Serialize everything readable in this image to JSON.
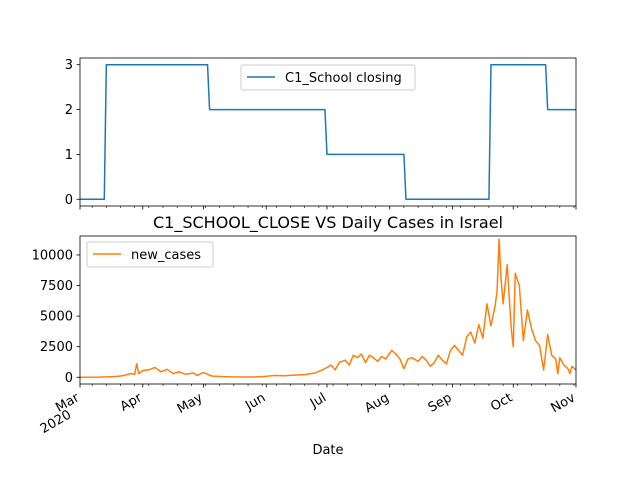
{
  "chart_data": [
    {
      "type": "line",
      "x_unit": "date",
      "xlim": [
        "2020-03-01",
        "2020-11-01"
      ],
      "ylim": [
        -0.15,
        3.15
      ],
      "yticks": [
        0,
        1,
        2,
        3
      ],
      "grid": false,
      "legend_position": "upper-center",
      "series": [
        {
          "name": "C1_School closing",
          "color": "#1f77b4",
          "points": [
            [
              "2020-03-01",
              0
            ],
            [
              "2020-03-13",
              0
            ],
            [
              "2020-03-14",
              3
            ],
            [
              "2020-05-03",
              3
            ],
            [
              "2020-05-04",
              2
            ],
            [
              "2020-06-30",
              2
            ],
            [
              "2020-07-01",
              1
            ],
            [
              "2020-08-08",
              1
            ],
            [
              "2020-08-09",
              0
            ],
            [
              "2020-09-19",
              0
            ],
            [
              "2020-09-20",
              3
            ],
            [
              "2020-10-17",
              3
            ],
            [
              "2020-10-18",
              2
            ],
            [
              "2020-11-01",
              2
            ]
          ]
        }
      ]
    },
    {
      "type": "line",
      "title": "C1_SCHOOL_CLOSE VS Daily Cases in Israel",
      "xlabel": "Date",
      "x_unit": "date",
      "xlim": [
        "2020-03-01",
        "2020-11-01"
      ],
      "ylim": [
        -550,
        11550
      ],
      "yticks": [
        0,
        2500,
        5000,
        7500,
        10000
      ],
      "grid": false,
      "legend_position": "upper-left",
      "x_tick_labels": [
        {
          "date": "2020-03-01",
          "label": "Mar",
          "sub": "2020"
        },
        {
          "date": "2020-04-01",
          "label": "Apr",
          "sub": ""
        },
        {
          "date": "2020-05-01",
          "label": "May",
          "sub": ""
        },
        {
          "date": "2020-06-01",
          "label": "Jun",
          "sub": ""
        },
        {
          "date": "2020-07-01",
          "label": "Jul",
          "sub": ""
        },
        {
          "date": "2020-08-01",
          "label": "Aug",
          "sub": ""
        },
        {
          "date": "2020-09-01",
          "label": "Sep",
          "sub": ""
        },
        {
          "date": "2020-10-01",
          "label": "Oct",
          "sub": ""
        },
        {
          "date": "2020-11-01",
          "label": "Nov",
          "sub": ""
        }
      ],
      "series": [
        {
          "name": "new_cases",
          "color": "#ff7f0e",
          "points": [
            [
              "2020-03-01",
              0
            ],
            [
              "2020-03-10",
              10
            ],
            [
              "2020-03-18",
              50
            ],
            [
              "2020-03-22",
              120
            ],
            [
              "2020-03-26",
              300
            ],
            [
              "2020-03-28",
              250
            ],
            [
              "2020-03-29",
              1100
            ],
            [
              "2020-03-30",
              300
            ],
            [
              "2020-04-01",
              550
            ],
            [
              "2020-04-04",
              600
            ],
            [
              "2020-04-07",
              800
            ],
            [
              "2020-04-10",
              450
            ],
            [
              "2020-04-13",
              650
            ],
            [
              "2020-04-16",
              300
            ],
            [
              "2020-04-19",
              450
            ],
            [
              "2020-04-22",
              250
            ],
            [
              "2020-04-26",
              350
            ],
            [
              "2020-04-28",
              150
            ],
            [
              "2020-05-01",
              400
            ],
            [
              "2020-05-05",
              100
            ],
            [
              "2020-05-10",
              50
            ],
            [
              "2020-05-15",
              30
            ],
            [
              "2020-05-20",
              20
            ],
            [
              "2020-05-25",
              20
            ],
            [
              "2020-05-31",
              60
            ],
            [
              "2020-06-05",
              150
            ],
            [
              "2020-06-10",
              120
            ],
            [
              "2020-06-15",
              180
            ],
            [
              "2020-06-20",
              220
            ],
            [
              "2020-06-25",
              350
            ],
            [
              "2020-06-28",
              550
            ],
            [
              "2020-07-01",
              800
            ],
            [
              "2020-07-03",
              1000
            ],
            [
              "2020-07-05",
              600
            ],
            [
              "2020-07-07",
              1200
            ],
            [
              "2020-07-10",
              1400
            ],
            [
              "2020-07-12",
              1000
            ],
            [
              "2020-07-14",
              1800
            ],
            [
              "2020-07-16",
              1600
            ],
            [
              "2020-07-18",
              1900
            ],
            [
              "2020-07-20",
              1200
            ],
            [
              "2020-07-22",
              1800
            ],
            [
              "2020-07-24",
              1600
            ],
            [
              "2020-07-26",
              1300
            ],
            [
              "2020-07-28",
              1700
            ],
            [
              "2020-07-30",
              1500
            ],
            [
              "2020-08-02",
              2200
            ],
            [
              "2020-08-04",
              1900
            ],
            [
              "2020-08-06",
              1500
            ],
            [
              "2020-08-08",
              700
            ],
            [
              "2020-08-10",
              1500
            ],
            [
              "2020-08-12",
              1600
            ],
            [
              "2020-08-15",
              1300
            ],
            [
              "2020-08-17",
              1700
            ],
            [
              "2020-08-19",
              1400
            ],
            [
              "2020-08-21",
              900
            ],
            [
              "2020-08-23",
              1200
            ],
            [
              "2020-08-25",
              1800
            ],
            [
              "2020-08-27",
              1400
            ],
            [
              "2020-08-29",
              1100
            ],
            [
              "2020-08-31",
              2200
            ],
            [
              "2020-09-02",
              2600
            ],
            [
              "2020-09-04",
              2200
            ],
            [
              "2020-09-06",
              1800
            ],
            [
              "2020-09-08",
              3300
            ],
            [
              "2020-09-10",
              3700
            ],
            [
              "2020-09-12",
              2800
            ],
            [
              "2020-09-14",
              4300
            ],
            [
              "2020-09-16",
              3200
            ],
            [
              "2020-09-18",
              6000
            ],
            [
              "2020-09-20",
              4200
            ],
            [
              "2020-09-22",
              5800
            ],
            [
              "2020-09-23",
              7000
            ],
            [
              "2020-09-24",
              11300
            ],
            [
              "2020-09-25",
              8000
            ],
            [
              "2020-09-26",
              6000
            ],
            [
              "2020-09-28",
              9200
            ],
            [
              "2020-09-30",
              4000
            ],
            [
              "2020-10-01",
              2500
            ],
            [
              "2020-10-02",
              8500
            ],
            [
              "2020-10-04",
              7500
            ],
            [
              "2020-10-06",
              3000
            ],
            [
              "2020-10-08",
              5500
            ],
            [
              "2020-10-10",
              4000
            ],
            [
              "2020-10-12",
              3000
            ],
            [
              "2020-10-14",
              2600
            ],
            [
              "2020-10-16",
              600
            ],
            [
              "2020-10-17",
              2000
            ],
            [
              "2020-10-18",
              3500
            ],
            [
              "2020-10-20",
              1800
            ],
            [
              "2020-10-22",
              1500
            ],
            [
              "2020-10-23",
              300
            ],
            [
              "2020-10-24",
              1600
            ],
            [
              "2020-10-26",
              1000
            ],
            [
              "2020-10-28",
              700
            ],
            [
              "2020-10-29",
              300
            ],
            [
              "2020-10-30",
              900
            ],
            [
              "2020-11-01",
              600
            ]
          ]
        }
      ]
    }
  ]
}
